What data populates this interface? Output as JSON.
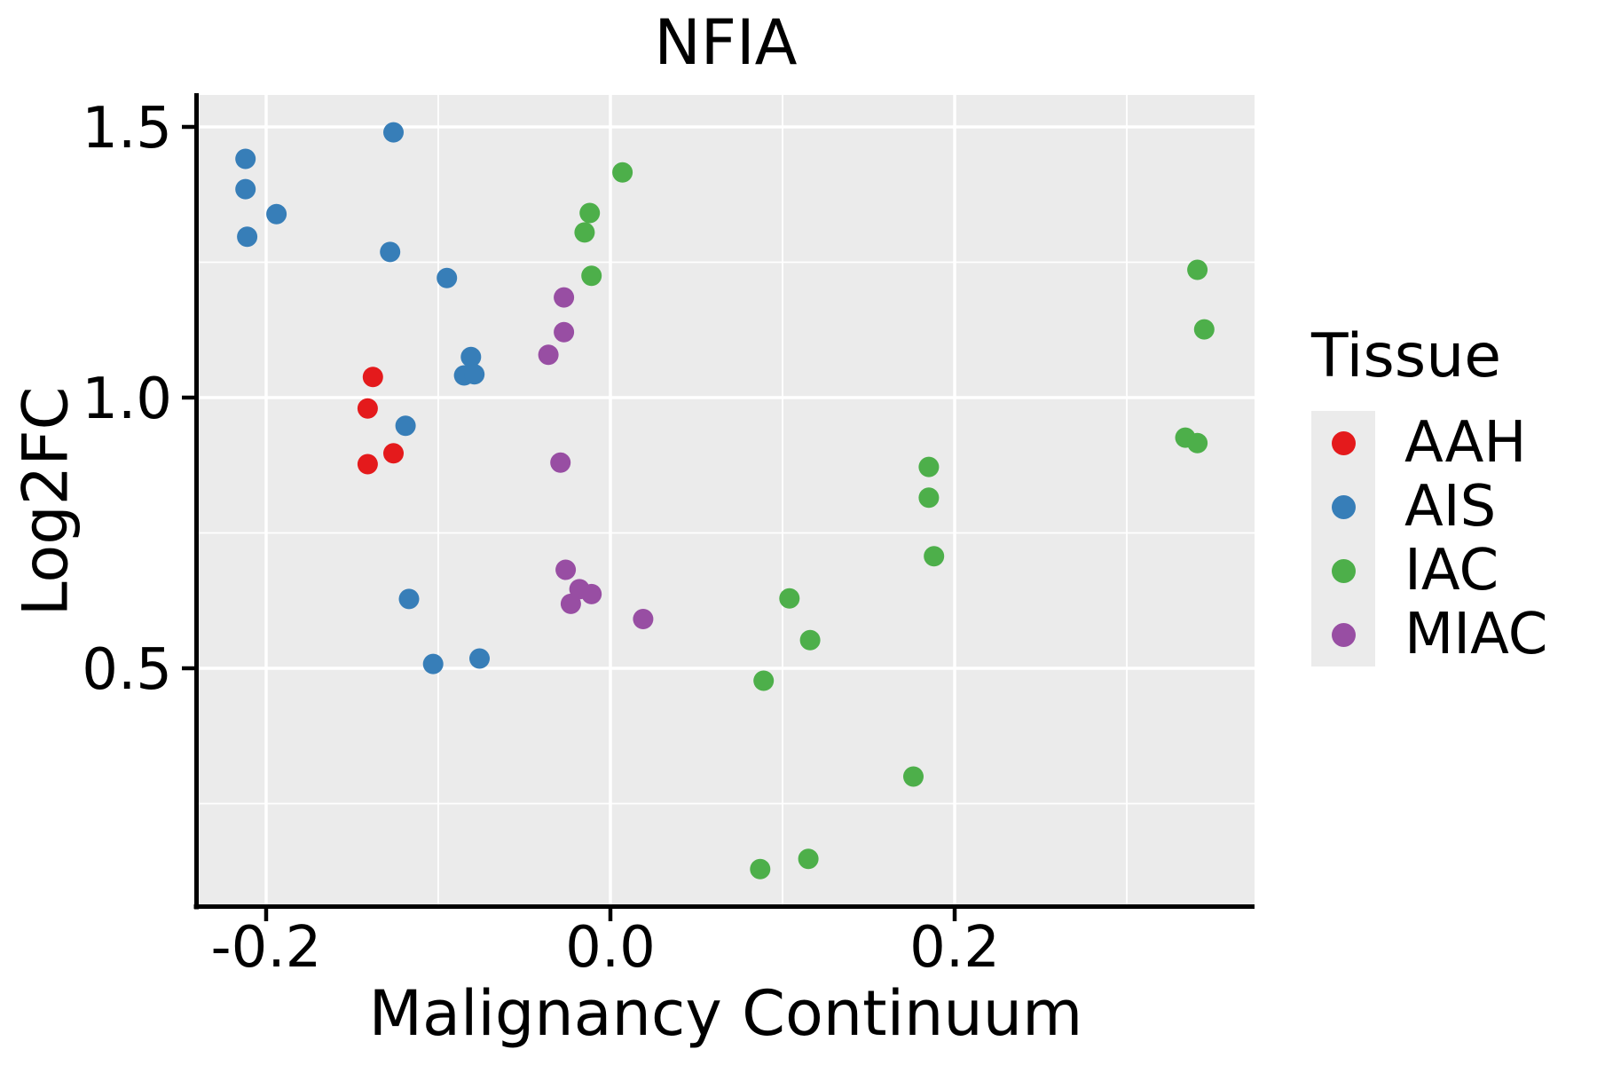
{
  "chart_data": {
    "type": "scatter",
    "title": "NFIA",
    "xlabel": "Malignancy Continuum",
    "ylabel": "Log2FC",
    "legend_title": "Tissue",
    "legend_position": "right",
    "panel_background": "#EBEBEB",
    "grid": {
      "show": true,
      "major_color": "#FFFFFF",
      "minor_color": "#FFFFFF"
    },
    "x_axis": {
      "range": [
        -0.2407,
        0.3742
      ],
      "ticks": [
        -0.2,
        0.0,
        0.2
      ],
      "tick_labels": [
        "-0.2",
        "0.0",
        "0.2"
      ],
      "minor_ticks": [
        -0.1,
        0.1,
        0.3
      ]
    },
    "y_axis": {
      "range": [
        0.059,
        1.559
      ],
      "ticks": [
        0.5,
        1.0,
        1.5
      ],
      "tick_labels": [
        "0.5",
        "1.0",
        "1.5"
      ],
      "minor_ticks": [
        0.25,
        0.75,
        1.25
      ]
    },
    "series": [
      {
        "name": "AAH",
        "color": "#E41A1C",
        "points": [
          [
            -0.138,
            1.038
          ],
          [
            -0.141,
            0.98
          ],
          [
            -0.126,
            0.897
          ],
          [
            -0.141,
            0.877
          ]
        ]
      },
      {
        "name": "AIS",
        "color": "#377EB8",
        "points": [
          [
            -0.126,
            1.49
          ],
          [
            -0.212,
            1.441
          ],
          [
            -0.212,
            1.385
          ],
          [
            -0.194,
            1.339
          ],
          [
            -0.211,
            1.297
          ],
          [
            -0.128,
            1.269
          ],
          [
            -0.095,
            1.221
          ],
          [
            -0.081,
            1.075
          ],
          [
            -0.085,
            1.041
          ],
          [
            -0.079,
            1.043
          ],
          [
            -0.119,
            0.948
          ],
          [
            -0.117,
            0.628
          ],
          [
            -0.103,
            0.508
          ],
          [
            -0.076,
            0.518
          ]
        ]
      },
      {
        "name": "IAC",
        "color": "#4DAF4A",
        "points": [
          [
            0.007,
            1.416
          ],
          [
            -0.012,
            1.341
          ],
          [
            -0.015,
            1.305
          ],
          [
            -0.011,
            1.225
          ],
          [
            0.341,
            1.236
          ],
          [
            0.345,
            1.126
          ],
          [
            0.334,
            0.926
          ],
          [
            0.341,
            0.916
          ],
          [
            0.185,
            0.872
          ],
          [
            0.185,
            0.815
          ],
          [
            0.188,
            0.707
          ],
          [
            0.104,
            0.629
          ],
          [
            0.116,
            0.552
          ],
          [
            0.089,
            0.477
          ],
          [
            0.176,
            0.3
          ],
          [
            0.087,
            0.129
          ],
          [
            0.115,
            0.148
          ]
        ]
      },
      {
        "name": "MIAC",
        "color": "#984EA3",
        "points": [
          [
            -0.027,
            1.185
          ],
          [
            -0.027,
            1.121
          ],
          [
            -0.036,
            1.079
          ],
          [
            -0.029,
            0.88
          ],
          [
            -0.026,
            0.682
          ],
          [
            -0.018,
            0.646
          ],
          [
            -0.011,
            0.637
          ],
          [
            -0.023,
            0.619
          ],
          [
            0.019,
            0.591
          ]
        ]
      }
    ],
    "style": {
      "point_radius": 11.5,
      "legend_dot_radius": 13,
      "axis_color": "#000000",
      "text_color": "#000000"
    }
  }
}
